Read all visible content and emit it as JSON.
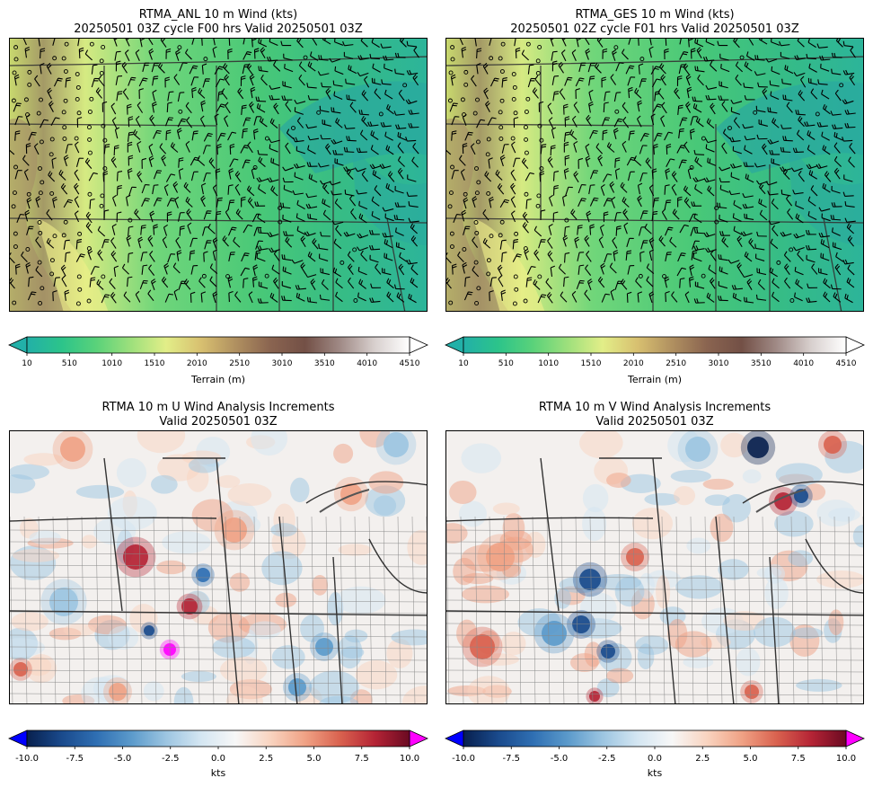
{
  "panels": [
    {
      "id": "anl",
      "title": "RTMA_ANL 10 m Wind (kts)",
      "subtitle": "20250501 03Z cycle F00 hrs Valid 20250501 03Z"
    },
    {
      "id": "ges",
      "title": "RTMA_GES 10 m Wind (kts)",
      "subtitle": "20250501 02Z cycle F01 hrs Valid 20250501 03Z"
    },
    {
      "id": "uinc",
      "title": "RTMA 10 m U Wind Analysis Increments",
      "subtitle": "Valid 20250501 03Z"
    },
    {
      "id": "vinc",
      "title": "RTMA 10 m V Wind Analysis Increments",
      "subtitle": "Valid 20250501 03Z"
    }
  ],
  "terrain_colorbar": {
    "label": "Terrain (m)",
    "ticks": [
      "10",
      "510",
      "1010",
      "1510",
      "2010",
      "2510",
      "3010",
      "3510",
      "4010",
      "4510"
    ],
    "colors": [
      "#22b0a8",
      "#2cc48a",
      "#5ad27a",
      "#9ee07c",
      "#e2ee88",
      "#d8c070",
      "#b09060",
      "#8a6450",
      "#735046",
      "#a08a86",
      "#d8d0ce",
      "#ffffff"
    ]
  },
  "increment_colorbar": {
    "label": "kts",
    "ticks": [
      "-10.0",
      "-7.5",
      "-5.0",
      "-2.5",
      "0.0",
      "2.5",
      "5.0",
      "7.5",
      "10.0"
    ],
    "under_color": "#0000ff",
    "over_color": "#ff00ff",
    "colors": [
      "#08204e",
      "#1a4a8c",
      "#2f6fb3",
      "#5b9acb",
      "#9cc5e1",
      "#d4e6f2",
      "#f7f7f7",
      "#f9d4c0",
      "#f0a285",
      "#d9624f",
      "#b52435",
      "#6a0a22"
    ]
  }
}
